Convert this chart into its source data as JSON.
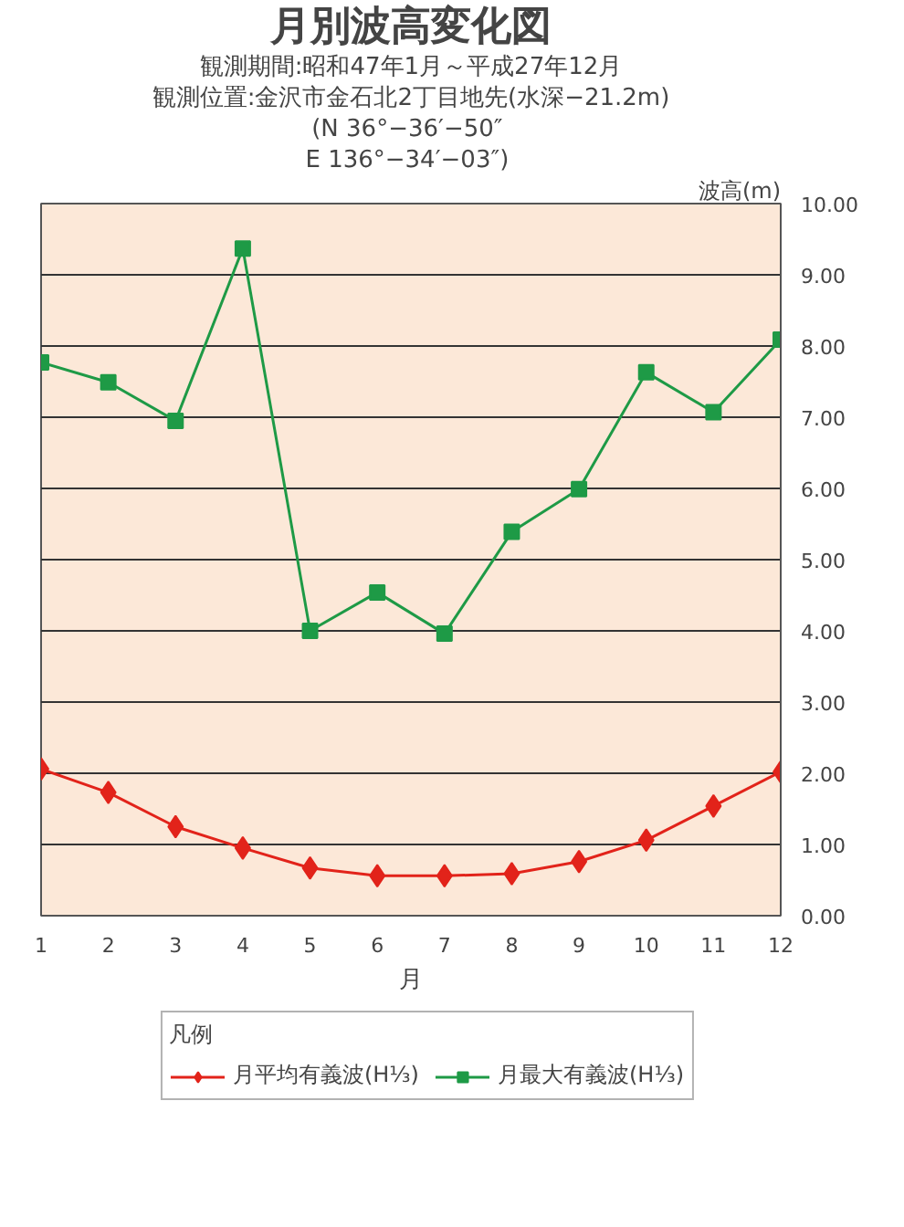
{
  "chart_data": {
    "type": "line",
    "title": "月別波高変化図",
    "subtitle": "観測期間:昭和47年1月～平成27年12月",
    "annotations": [
      "観測位置:金沢市金石北2丁目地先(水深−21.2m)",
      "(N  36°−36′−50″",
      " E 136°−34′−03″)"
    ],
    "xlabel": "月",
    "ylabel": "波高(m)",
    "legend_title": "凡例",
    "x": [
      1,
      2,
      3,
      4,
      5,
      6,
      7,
      8,
      9,
      10,
      11,
      12
    ],
    "xlim": [
      1,
      12
    ],
    "xticks": [
      1,
      2,
      3,
      4,
      5,
      6,
      7,
      8,
      9,
      10,
      11,
      12
    ],
    "ylim": [
      0,
      10
    ],
    "yticks": [
      {
        "value": 0,
        "label": "0.00"
      },
      {
        "value": 1,
        "label": "1.00"
      },
      {
        "value": 2,
        "label": "2.00"
      },
      {
        "value": 3,
        "label": "3.00"
      },
      {
        "value": 4,
        "label": "4.00"
      },
      {
        "value": 5,
        "label": "5.00"
      },
      {
        "value": 6,
        "label": "6.00"
      },
      {
        "value": 7,
        "label": "7.00"
      },
      {
        "value": 8,
        "label": "8.00"
      },
      {
        "value": 9,
        "label": "9.00"
      },
      {
        "value": 10,
        "label": "10.00"
      }
    ],
    "grid": "y",
    "legend": "bottom",
    "line_style": "solid",
    "series": [
      {
        "name": "月平均有義波(H⅓)",
        "color": "#e2231a",
        "marker": "diamond",
        "values": [
          2.06,
          1.73,
          1.25,
          0.95,
          0.67,
          0.56,
          0.56,
          0.59,
          0.76,
          1.06,
          1.54,
          2.02
        ]
      },
      {
        "name": "月最大有義波(H⅓)",
        "color": "#1e9a46",
        "marker": "square",
        "values": [
          7.77,
          7.49,
          6.95,
          9.37,
          4.0,
          4.54,
          3.96,
          5.39,
          5.99,
          7.63,
          7.07,
          8.09
        ]
      }
    ]
  }
}
